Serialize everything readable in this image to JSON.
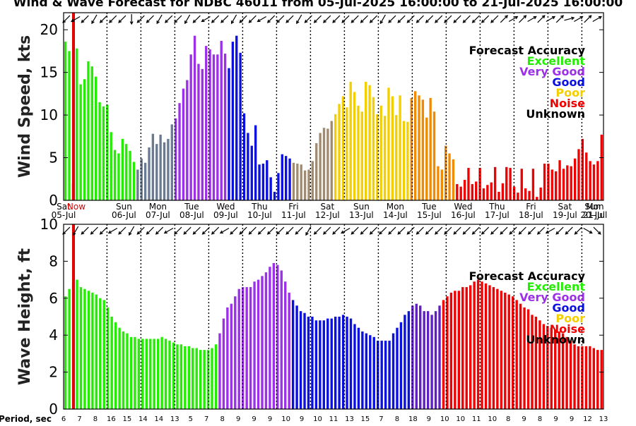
{
  "title": "Wind & Wave Forecast for NDBC 46011 from 05-Jul-2025 16:00:00 to 21-Jul-2025 16:00:00",
  "legend": {
    "title": "Forecast Accuracy",
    "items": [
      {
        "label": "Excellent",
        "color": "#22ee00"
      },
      {
        "label": "Very Good",
        "color": "#9b30e8"
      },
      {
        "label": "Good",
        "color": "#0a10e0"
      },
      {
        "label": "Poor",
        "color": "#f4cf00"
      },
      {
        "label": "Noise",
        "color": "#f00000"
      },
      {
        "label": "Unknown",
        "color": "#000000"
      }
    ]
  },
  "now_label": "Now",
  "period_label": "Period, sec",
  "day_labels": [
    {
      "day": "Sat",
      "date": "05-Jul"
    },
    {
      "day": "Sun",
      "date": "06-Jul"
    },
    {
      "day": "Mon",
      "date": "07-Jul"
    },
    {
      "day": "Tue",
      "date": "08-Jul"
    },
    {
      "day": "Wed",
      "date": "09-Jul"
    },
    {
      "day": "Thu",
      "date": "10-Jul"
    },
    {
      "day": "Fri",
      "date": "11-Jul"
    },
    {
      "day": "Sat",
      "date": "12-Jul"
    },
    {
      "day": "Sun",
      "date": "13-Jul"
    },
    {
      "day": "Mon",
      "date": "14-Jul"
    },
    {
      "day": "Tue",
      "date": "15-Jul"
    },
    {
      "day": "Wed",
      "date": "16-Jul"
    },
    {
      "day": "Thu",
      "date": "17-Jul"
    },
    {
      "day": "Fri",
      "date": "18-Jul"
    },
    {
      "day": "Sat",
      "date": "19-Jul"
    },
    {
      "day": "Sun",
      "date": "20-Jul"
    },
    {
      "day": "Mon",
      "date": "21-Jul"
    }
  ],
  "period_ticks": [
    "6",
    "7",
    "8",
    "16",
    "15",
    "14",
    "14",
    "13",
    "5",
    "7",
    "8",
    "9",
    "9",
    "9",
    "10",
    "9",
    "10",
    "11",
    "13",
    "15",
    "7",
    "8",
    "18",
    "9",
    "10",
    "10",
    "11",
    "10",
    "8",
    "9",
    "8",
    "9",
    "9",
    "12",
    "13"
  ],
  "chart_data": [
    {
      "type": "bar",
      "ylabel": "Wind Speed, kts",
      "ylim": [
        0,
        22
      ],
      "yticks": [
        0,
        5,
        10,
        15,
        20
      ],
      "grid": false,
      "legend_position": "top-right",
      "values": [
        18.6,
        17.5,
        2.0,
        17.8,
        13.6,
        14.2,
        16.3,
        15.7,
        14.5,
        11.5,
        11.0,
        11.2,
        8.0,
        5.9,
        5.5,
        7.2,
        6.6,
        5.8,
        4.5,
        3.6,
        4.9,
        4.4,
        6.2,
        7.8,
        6.6,
        7.7,
        6.8,
        7.2,
        8.9,
        9.6,
        11.4,
        13.1,
        14.1,
        17.1,
        19.3,
        16.0,
        15.4,
        18.1,
        17.7,
        17.1,
        17.1,
        18.7,
        17.2,
        15.5,
        18.6,
        19.3,
        17.3,
        10.2,
        7.9,
        6.4,
        8.8,
        4.2,
        4.3,
        4.7,
        2.7,
        1.0,
        3.2,
        5.4,
        5.2,
        4.9,
        4.4,
        4.3,
        4.2,
        3.5,
        3.6,
        4.6,
        6.7,
        7.9,
        8.5,
        8.4,
        9.3,
        10.1,
        11.3,
        12.2,
        10.9,
        13.9,
        12.7,
        11.1,
        10.4,
        13.9,
        13.5,
        12.1,
        10.1,
        11.1,
        9.9,
        13.2,
        12.2,
        10.0,
        12.3,
        9.3,
        9.2,
        12.0,
        12.8,
        12.3,
        11.8,
        9.7,
        12.0,
        10.4,
        4.0,
        3.6,
        6.4,
        5.5,
        4.8,
        1.9,
        1.6,
        2.4,
        3.8,
        1.9,
        2.2,
        3.8,
        1.4,
        1.8,
        2.1,
        3.9,
        1.0,
        2.0,
        3.9,
        3.8,
        1.6,
        0.9,
        3.7,
        1.4,
        1.1,
        3.7,
        0.4,
        1.5,
        4.3,
        4.3,
        3.6,
        3.4,
        4.7,
        3.7,
        4.1,
        4.0,
        4.9,
        6.0,
        7.2,
        5.6,
        4.6,
        4.2,
        4.6,
        7.7
      ],
      "arrow_directions_deg": [
        135,
        150,
        135,
        120,
        135,
        135,
        135,
        90,
        135,
        135,
        120,
        135,
        135,
        120,
        135,
        150,
        135,
        135,
        120,
        135,
        135,
        150,
        135,
        135,
        135,
        120,
        135,
        135,
        135,
        135,
        135,
        135,
        135,
        135,
        120,
        135,
        135,
        135,
        135,
        135,
        135,
        135,
        135,
        135,
        135,
        135,
        135,
        315,
        330,
        315,
        330,
        315,
        330,
        315,
        345,
        330,
        315,
        330
      ]
    },
    {
      "type": "bar",
      "ylabel": "Wave Height, ft",
      "ylim": [
        0,
        10
      ],
      "yticks": [
        0,
        2,
        4,
        6,
        8,
        10
      ],
      "grid": false,
      "legend_position": "top-right",
      "values": [
        6.1,
        6.5,
        6.8,
        7.0,
        6.6,
        6.5,
        6.4,
        6.3,
        6.2,
        6.0,
        5.9,
        5.5,
        5.0,
        4.7,
        4.4,
        4.2,
        4.1,
        3.9,
        3.9,
        3.8,
        3.8,
        3.8,
        3.8,
        3.8,
        3.8,
        3.9,
        3.8,
        3.7,
        3.6,
        3.5,
        3.5,
        3.4,
        3.4,
        3.3,
        3.3,
        3.2,
        3.2,
        3.2,
        3.3,
        3.5,
        4.1,
        4.9,
        5.5,
        5.7,
        6.1,
        6.5,
        6.6,
        6.6,
        6.6,
        6.9,
        7.0,
        7.2,
        7.4,
        7.7,
        7.9,
        7.8,
        7.5,
        6.9,
        6.3,
        5.9,
        5.6,
        5.3,
        5.2,
        5.0,
        5.0,
        4.8,
        4.8,
        4.8,
        4.9,
        4.9,
        5.0,
        5.0,
        5.1,
        5.0,
        4.9,
        4.6,
        4.4,
        4.2,
        4.1,
        4.0,
        3.9,
        3.7,
        3.7,
        3.7,
        3.7,
        4.1,
        4.4,
        4.7,
        5.1,
        5.3,
        5.6,
        5.7,
        5.6,
        5.3,
        5.3,
        5.1,
        5.3,
        5.6,
        5.9,
        6.1,
        6.3,
        6.4,
        6.4,
        6.6,
        6.6,
        6.7,
        6.9,
        7.0,
        6.9,
        6.8,
        6.7,
        6.6,
        6.5,
        6.4,
        6.3,
        6.2,
        6.1,
        5.9,
        5.7,
        5.5,
        5.4,
        5.1,
        5.0,
        4.8,
        4.6,
        4.5,
        4.4,
        4.3,
        4.2,
        4.1,
        3.9,
        3.7,
        3.5,
        3.4,
        3.4,
        3.4,
        3.4,
        3.3,
        3.2,
        3.2
      ],
      "arrow_directions_deg": [
        135,
        120,
        135,
        135,
        135,
        150,
        135,
        120,
        135,
        135,
        135,
        150,
        135,
        135,
        135,
        135,
        135,
        150,
        135,
        135,
        135,
        135,
        135,
        135,
        135,
        135,
        120,
        135,
        135,
        135,
        150,
        135,
        135,
        135,
        135,
        135,
        135,
        135,
        135,
        135,
        135,
        135,
        135,
        135,
        135,
        135,
        135,
        135,
        135,
        135,
        135,
        135,
        150,
        135,
        135,
        135,
        30,
        45
      ]
    }
  ]
}
